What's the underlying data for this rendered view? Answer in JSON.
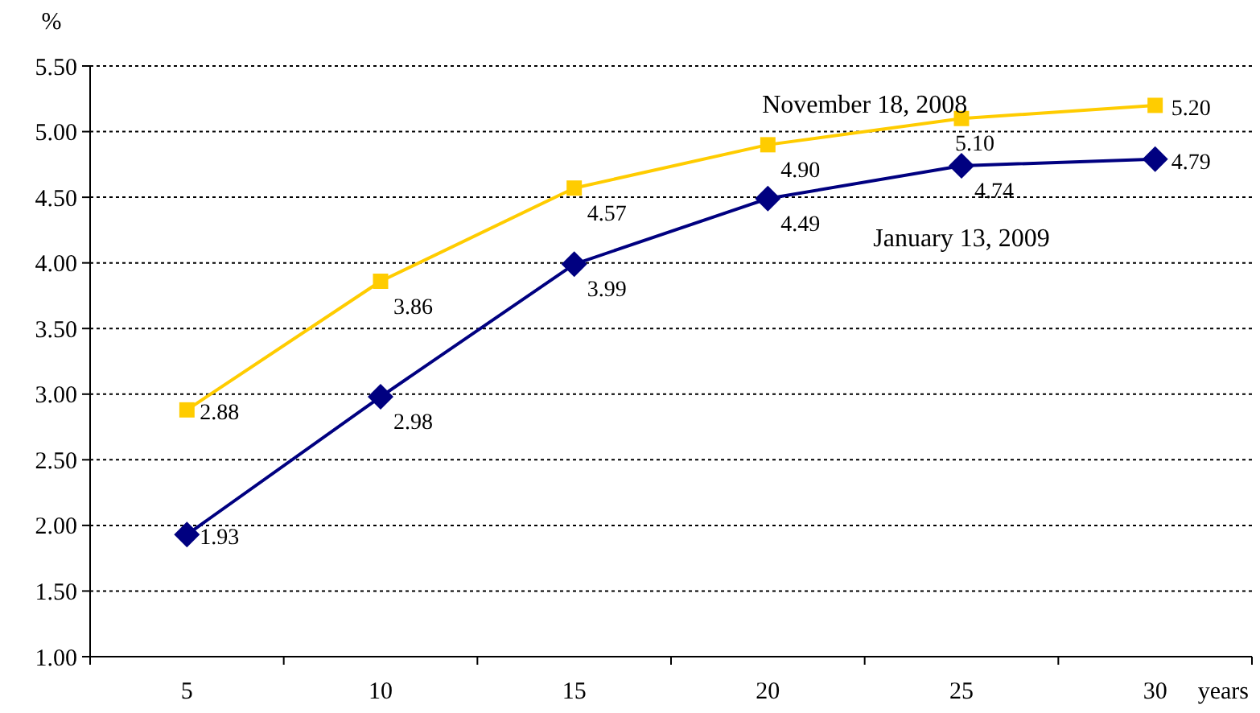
{
  "chart_data": {
    "type": "line",
    "ylabel": "%",
    "xlabel": "years",
    "categories": [
      "5",
      "10",
      "15",
      "20",
      "25",
      "30"
    ],
    "series": [
      {
        "name": "November 18, 2008",
        "color": "#ffcc00",
        "marker": "square",
        "values": [
          2.88,
          3.86,
          4.57,
          4.9,
          5.1,
          5.2
        ],
        "value_labels": [
          "2.88",
          "3.86",
          "4.57",
          "4.90",
          "5.10",
          "5.20"
        ]
      },
      {
        "name": "January 13, 2009",
        "color": "#000080",
        "marker": "diamond",
        "values": [
          1.93,
          2.98,
          3.99,
          4.49,
          4.74,
          4.79
        ],
        "value_labels": [
          "1.93",
          "2.98",
          "3.99",
          "4.49",
          "4.74",
          "4.79"
        ]
      }
    ],
    "ylim": [
      1,
      5.5
    ],
    "yticks": [
      {
        "value": 1,
        "label": "1.00"
      },
      {
        "value": 1.5,
        "label": "1.50"
      },
      {
        "value": 2,
        "label": "2.00"
      },
      {
        "value": 2.5,
        "label": "2.50"
      },
      {
        "value": 3,
        "label": "3.00"
      },
      {
        "value": 3.5,
        "label": "3.50"
      },
      {
        "value": 4,
        "label": "4.00"
      },
      {
        "value": 4.5,
        "label": "4.50"
      },
      {
        "value": 5,
        "label": "5.00"
      },
      {
        "value": 5.5,
        "label": "5.50"
      }
    ],
    "grid": "y",
    "line_style": "solid"
  }
}
